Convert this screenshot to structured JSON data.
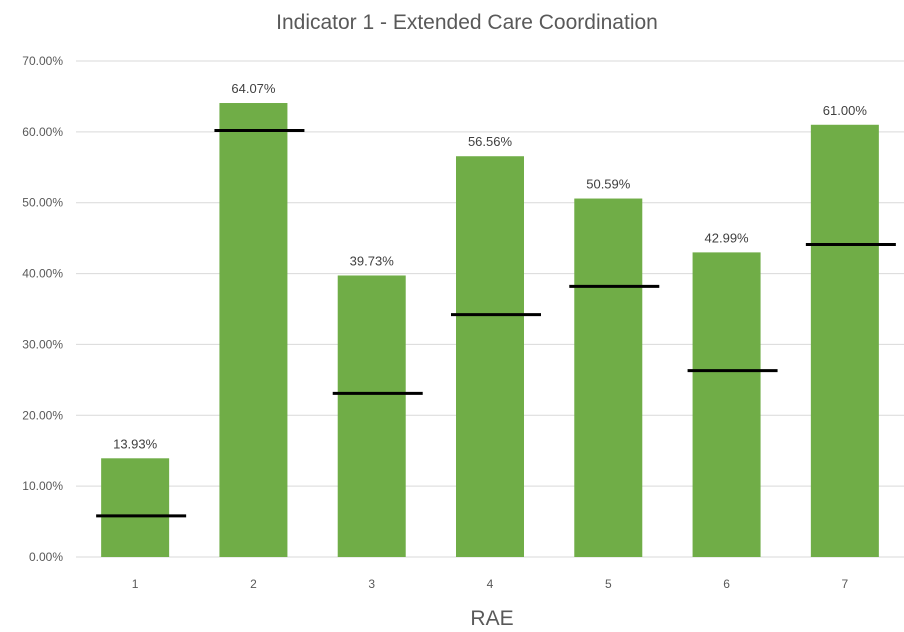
{
  "chart_data": {
    "type": "bar",
    "title": "Indicator 1 - Extended Care Coordination",
    "xlabel": "RAE",
    "ylabel": "",
    "categories": [
      "1",
      "2",
      "3",
      "4",
      "5",
      "6",
      "7"
    ],
    "series": [
      {
        "values": [
          13.93,
          64.07,
          39.73,
          56.56,
          50.59,
          42.99,
          61.0
        ],
        "labels": [
          "13.93%",
          "64.07%",
          "39.73%",
          "56.56%",
          "50.59%",
          "42.99%",
          "61.00%"
        ],
        "color": "#70ad47"
      }
    ],
    "goal_markers": [
      5.8,
      60.2,
      23.1,
      34.2,
      38.2,
      26.3,
      44.1
    ],
    "goal_marker_color": "#000000",
    "ylim": [
      0,
      70
    ],
    "yticks": [
      0,
      10,
      20,
      30,
      40,
      50,
      60,
      70
    ],
    "ytick_labels": [
      "0.00%",
      "10.00%",
      "20.00%",
      "30.00%",
      "40.00%",
      "50.00%",
      "60.00%",
      "70.00%"
    ],
    "grid": true,
    "legend": "none"
  }
}
